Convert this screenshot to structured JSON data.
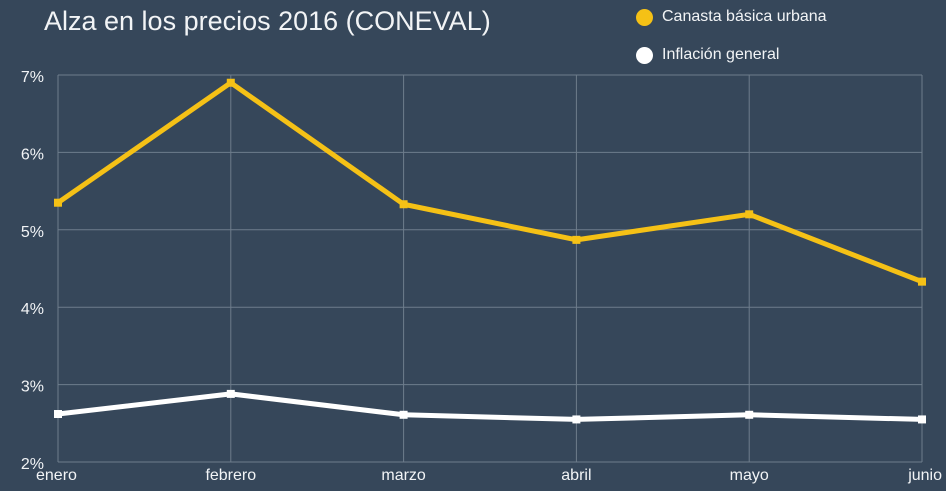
{
  "chart_data": {
    "type": "line",
    "title": "Alza en los precios 2016 (CONEVAL)",
    "xlabel": "",
    "ylabel": "",
    "categories": [
      "enero",
      "febrero",
      "marzo",
      "abril",
      "mayo",
      "junio"
    ],
    "y_ticks": [
      "2%",
      "3%",
      "4%",
      "5%",
      "6%",
      "7%"
    ],
    "ylim": [
      2,
      7
    ],
    "grid": true,
    "legend_position": "top-right",
    "series": [
      {
        "name": "Canasta básica urbana",
        "color": "#f5c116",
        "values": [
          5.35,
          6.9,
          5.33,
          4.87,
          5.2,
          4.33
        ]
      },
      {
        "name": "Inflación general",
        "color": "#ffffff",
        "values": [
          2.62,
          2.88,
          2.61,
          2.55,
          2.61,
          2.55
        ]
      }
    ]
  },
  "colors": {
    "background": "#36475a",
    "grid": "#6e7d8c",
    "text": "#f2f4f6"
  }
}
